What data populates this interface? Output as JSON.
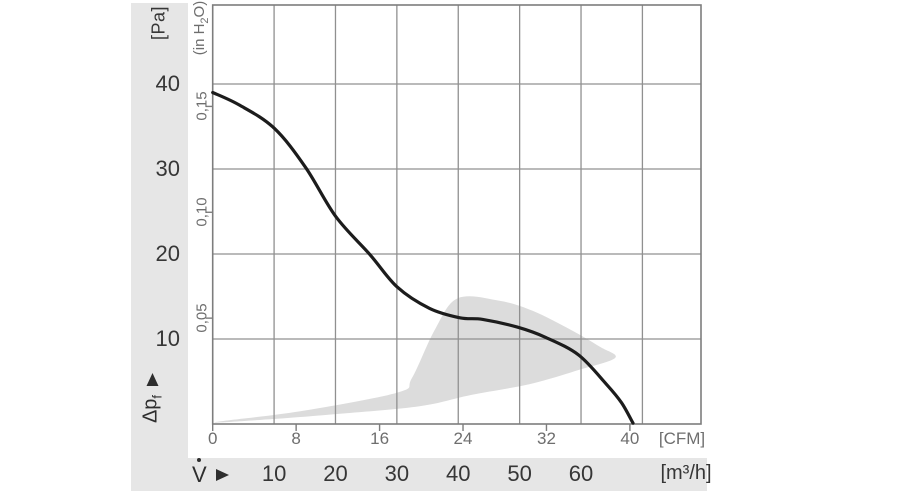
{
  "colors": {
    "band": "#e6e6e6",
    "grid": "#909090",
    "frame": "#7d7d7d",
    "curve": "#1c1c1c",
    "region": "#dcdcdc",
    "text_dark": "#363636",
    "text_gray": "#6e6e6e"
  },
  "chart_data": {
    "type": "line",
    "grid": true,
    "legend": false,
    "y_axis_primary": {
      "label": "[Pa]",
      "ticks": [
        40,
        30,
        20,
        10
      ]
    },
    "y_axis_secondary": {
      "label_parts": {
        "pre": "(in H",
        "sub": "2",
        "post": "O)"
      },
      "tick_labels": [
        "0,15",
        "0,10",
        "0,05"
      ],
      "tick_values": [
        0.15,
        0.1,
        0.05
      ]
    },
    "x_axis_primary": {
      "label": "[CFM]",
      "ticks": [
        0,
        8,
        16,
        24,
        32,
        40
      ]
    },
    "x_axis_secondary": {
      "label": "[m³/h]",
      "ticks": [
        10,
        20,
        30,
        40,
        50,
        60
      ],
      "grid_values": [
        10,
        20,
        30,
        40,
        50,
        60,
        70
      ]
    },
    "y_axis_title_parts": {
      "base": "Δp",
      "sub": "f"
    },
    "x_axis_title": "V",
    "axis_ranges": {
      "x_cfm": [
        0,
        46.8
      ],
      "y_pa": [
        0,
        49.3
      ]
    },
    "series": [
      {
        "name": "air flow / static pressure characteristic curve",
        "units": "x in CFM, y in Pa",
        "points": [
          [
            0,
            39.0
          ],
          [
            2.6,
            37.5
          ],
          [
            5.9,
            34.8
          ],
          [
            8.9,
            30.2
          ],
          [
            11.8,
            24.4
          ],
          [
            15.1,
            19.9
          ],
          [
            17.7,
            16.1
          ],
          [
            20.8,
            13.6
          ],
          [
            23.7,
            12.5
          ],
          [
            25.9,
            12.3
          ],
          [
            29.2,
            11.4
          ],
          [
            31.9,
            10.2
          ],
          [
            35.1,
            8.1
          ],
          [
            37.8,
            4.6
          ],
          [
            39.2,
            2.5
          ],
          [
            40.3,
            0.1
          ]
        ]
      }
    ],
    "operating_region": {
      "name": "shaded operating region",
      "units": "x in CFM, y in Pa",
      "points": [
        [
          0.2,
          0.2
        ],
        [
          6.0,
          0.6
        ],
        [
          12.2,
          1.2
        ],
        [
          19.9,
          2.1
        ],
        [
          24.7,
          3.4
        ],
        [
          30.4,
          4.7
        ],
        [
          35.2,
          6.4
        ],
        [
          38.6,
          7.8
        ],
        [
          37.1,
          9.1
        ],
        [
          34.3,
          11.1
        ],
        [
          30.7,
          13.3
        ],
        [
          27.5,
          14.5
        ],
        [
          23.5,
          14.8
        ],
        [
          21.3,
          11.1
        ],
        [
          19.1,
          5.4
        ],
        [
          17.7,
          3.7
        ],
        [
          8.4,
          1.5
        ]
      ]
    }
  }
}
